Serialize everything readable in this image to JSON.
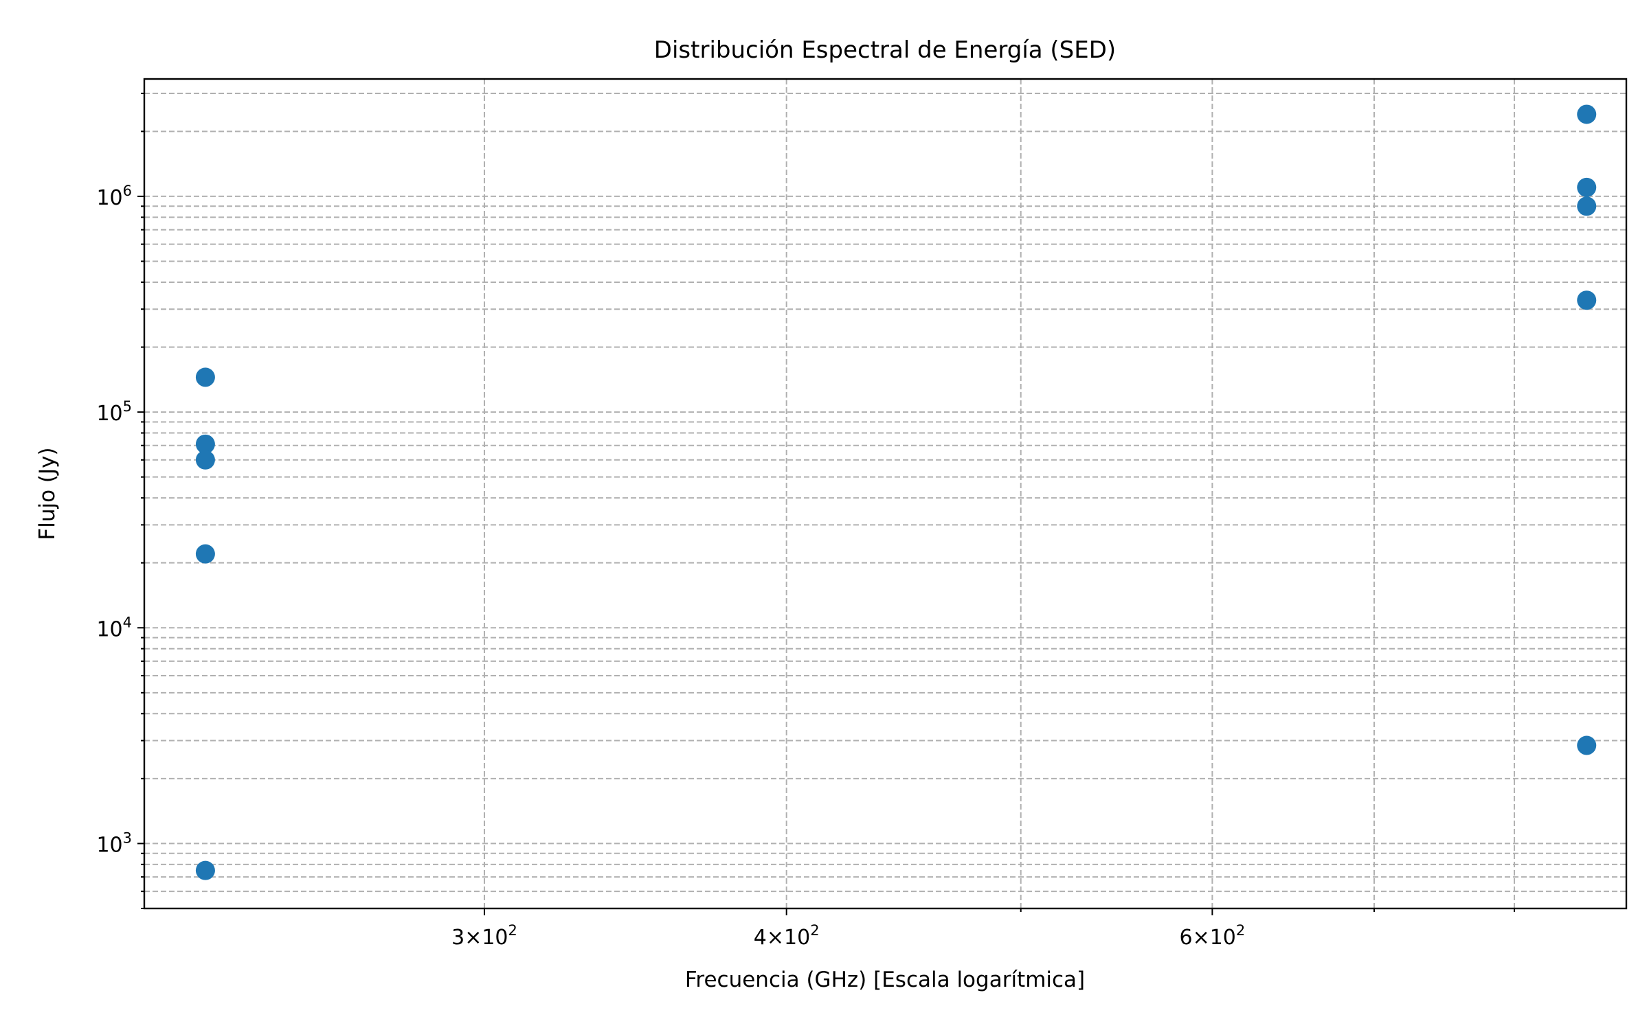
{
  "chart_data": {
    "type": "scatter",
    "title": "Distribución Espectral de Energía (SED)",
    "xlabel": "Frecuencia (GHz) [Escala logarítmica]",
    "ylabel": "Flujo (Jy)",
    "xscale": "log",
    "yscale": "log",
    "xlim": [
      217,
      890
    ],
    "ylim": [
      500,
      3500000
    ],
    "grid": "both-major-and-minor-dashed",
    "marker_color": "#1f77b4",
    "x_ticks": [
      {
        "value": 300,
        "mantissa": "3",
        "exponent": "2"
      },
      {
        "value": 400,
        "mantissa": "4",
        "exponent": "2"
      },
      {
        "value": 600,
        "mantissa": "6",
        "exponent": "2"
      }
    ],
    "y_ticks": [
      {
        "value": 1000,
        "base": "10",
        "exponent": "3"
      },
      {
        "value": 10000,
        "base": "10",
        "exponent": "4"
      },
      {
        "value": 100000,
        "base": "10",
        "exponent": "5"
      },
      {
        "value": 1000000,
        "base": "10",
        "exponent": "6"
      }
    ],
    "points": [
      {
        "x": 230,
        "y": 145000
      },
      {
        "x": 230,
        "y": 71000
      },
      {
        "x": 230,
        "y": 60000
      },
      {
        "x": 230,
        "y": 22000
      },
      {
        "x": 230,
        "y": 750
      },
      {
        "x": 857,
        "y": 2400000
      },
      {
        "x": 857,
        "y": 1100000
      },
      {
        "x": 857,
        "y": 900000
      },
      {
        "x": 857,
        "y": 330000
      },
      {
        "x": 857,
        "y": 2850
      }
    ]
  }
}
